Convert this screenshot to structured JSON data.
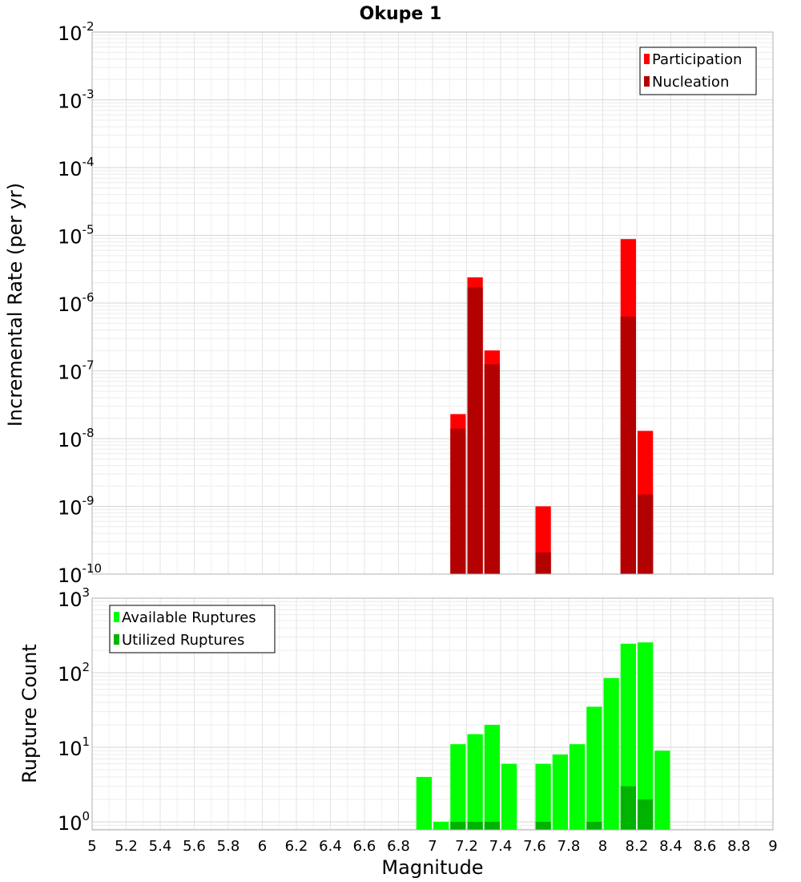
{
  "chart_data": {
    "type": "bar",
    "title": "Okupe 1",
    "xlabel": "Magnitude",
    "xlim": [
      5,
      9
    ],
    "x_ticks": [
      "5",
      "5.2",
      "5.4",
      "5.6",
      "5.8",
      "6",
      "6.2",
      "6.4",
      "6.6",
      "6.8",
      "7",
      "7.2",
      "7.4",
      "7.6",
      "7.8",
      "8",
      "8.2",
      "8.4",
      "8.6",
      "8.8",
      "9"
    ],
    "bin_width": 0.1,
    "grid": true,
    "panels": [
      {
        "ylabel": "Incremental Rate (per yr)",
        "yscale": "log",
        "ylim": [
          1e-10,
          0.01
        ],
        "y_tick_exponents": [
          "-10",
          "-9",
          "-8",
          "-7",
          "-6",
          "-5",
          "-4",
          "-3",
          "-2"
        ],
        "legend_position": "top-right",
        "series": [
          {
            "name": "Participation",
            "color": "#ff0000",
            "points": [
              {
                "x": 7.15,
                "y": 2.3e-08
              },
              {
                "x": 7.25,
                "y": 2.4e-06
              },
              {
                "x": 7.35,
                "y": 2e-07
              },
              {
                "x": 7.65,
                "y": 1e-09
              },
              {
                "x": 8.15,
                "y": 8.8e-06
              },
              {
                "x": 8.25,
                "y": 1.3e-08
              }
            ]
          },
          {
            "name": "Nucleation",
            "color": "#b30000",
            "points": [
              {
                "x": 7.15,
                "y": 1.4e-08
              },
              {
                "x": 7.25,
                "y": 1.7e-06
              },
              {
                "x": 7.35,
                "y": 1.25e-07
              },
              {
                "x": 7.65,
                "y": 2.1e-10
              },
              {
                "x": 8.15,
                "y": 6.3e-07
              },
              {
                "x": 8.25,
                "y": 1.5e-09
              }
            ]
          }
        ]
      },
      {
        "ylabel": "Rupture Count",
        "yscale": "log",
        "ylim": [
          0.78,
          1000
        ],
        "y_tick_exponents": [
          "0",
          "1",
          "2",
          "3"
        ],
        "legend_position": "top-left",
        "series": [
          {
            "name": "Available Ruptures",
            "color": "#00ff00",
            "points": [
              {
                "x": 6.95,
                "y": 4
              },
              {
                "x": 7.05,
                "y": 1
              },
              {
                "x": 7.15,
                "y": 11
              },
              {
                "x": 7.25,
                "y": 15
              },
              {
                "x": 7.35,
                "y": 20
              },
              {
                "x": 7.45,
                "y": 6
              },
              {
                "x": 7.65,
                "y": 6
              },
              {
                "x": 7.75,
                "y": 8
              },
              {
                "x": 7.85,
                "y": 11
              },
              {
                "x": 7.95,
                "y": 35
              },
              {
                "x": 8.05,
                "y": 85
              },
              {
                "x": 8.15,
                "y": 245
              },
              {
                "x": 8.25,
                "y": 255
              },
              {
                "x": 8.35,
                "y": 9
              }
            ]
          },
          {
            "name": "Utilized Ruptures",
            "color": "#00b300",
            "points": [
              {
                "x": 7.15,
                "y": 1
              },
              {
                "x": 7.25,
                "y": 1
              },
              {
                "x": 7.35,
                "y": 1
              },
              {
                "x": 7.65,
                "y": 1
              },
              {
                "x": 7.95,
                "y": 1
              },
              {
                "x": 8.15,
                "y": 3
              },
              {
                "x": 8.25,
                "y": 2
              }
            ]
          }
        ]
      }
    ]
  }
}
